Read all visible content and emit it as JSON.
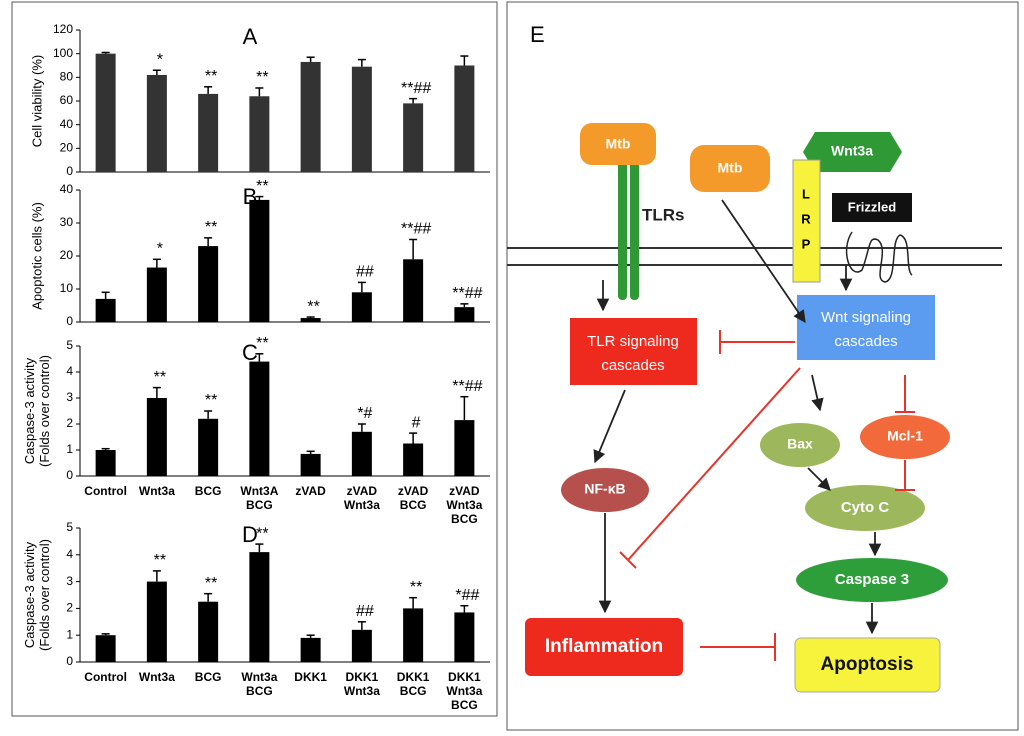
{
  "chart_data": [
    {
      "type": "bar",
      "panel": "A",
      "ylabel": [
        "Cell viability (%)"
      ],
      "categories": [
        null,
        null,
        null,
        null,
        null,
        null,
        null,
        null
      ],
      "values": [
        100,
        82,
        66,
        64,
        93,
        89,
        58,
        90
      ],
      "errors": [
        1,
        4,
        6,
        7,
        4,
        6,
        4,
        8
      ],
      "annotations": [
        null,
        "*",
        "**",
        "**",
        null,
        null,
        "**##",
        null
      ],
      "color": "#333333",
      "ylim": [
        0,
        120
      ],
      "yticks": [
        0,
        20,
        40,
        60,
        80,
        100,
        120
      ]
    },
    {
      "type": "bar",
      "panel": "B",
      "ylabel": [
        "Apoptotic cells (%)"
      ],
      "categories": [
        null,
        null,
        null,
        null,
        null,
        null,
        null,
        null
      ],
      "values": [
        7,
        16.5,
        23,
        37,
        1.2,
        9,
        19,
        4.5
      ],
      "errors": [
        2,
        2.5,
        2.5,
        1,
        0.3,
        3,
        6,
        1
      ],
      "annotations": [
        null,
        "*",
        "**",
        "**",
        "**",
        "##",
        "**##",
        "**##"
      ],
      "color": "#000000",
      "ylim": [
        0,
        40
      ],
      "yticks": [
        0,
        10,
        20,
        30,
        40
      ]
    },
    {
      "type": "bar",
      "panel": "C",
      "ylabel": [
        "Caspase-3 activity",
        "(Folds over control)"
      ],
      "categories": [
        [
          "Control"
        ],
        [
          "Wnt3a"
        ],
        [
          "BCG"
        ],
        [
          "Wnt3A",
          "BCG"
        ],
        [
          "zVAD"
        ],
        [
          "zVAD",
          "Wnt3a"
        ],
        [
          "zVAD",
          "BCG"
        ],
        [
          "zVAD",
          "Wnt3a",
          "BCG"
        ]
      ],
      "values": [
        1,
        3,
        2.2,
        4.4,
        0.85,
        1.7,
        1.25,
        2.15
      ],
      "errors": [
        0.05,
        0.4,
        0.3,
        0.3,
        0.1,
        0.3,
        0.4,
        0.9
      ],
      "annotations": [
        null,
        "**",
        "**",
        "**",
        null,
        "*#",
        "#",
        "**##"
      ],
      "color": "#000000",
      "ylim": [
        0,
        5
      ],
      "yticks": [
        0,
        1,
        2,
        3,
        4,
        5
      ]
    },
    {
      "type": "bar",
      "panel": "D",
      "ylabel": [
        "Caspase-3 activity",
        "(Folds over control)"
      ],
      "categories": [
        [
          "Control"
        ],
        [
          "Wnt3a"
        ],
        [
          "BCG"
        ],
        [
          "Wnt3a",
          "BCG"
        ],
        [
          "DKK1"
        ],
        [
          "DKK1",
          "Wnt3a"
        ],
        [
          "DKK1",
          "BCG"
        ],
        [
          "DKK1",
          "Wnt3a",
          "BCG"
        ]
      ],
      "values": [
        1,
        3,
        2.25,
        4.1,
        0.9,
        1.2,
        2,
        1.85
      ],
      "errors": [
        0.05,
        0.4,
        0.3,
        0.3,
        0.1,
        0.3,
        0.4,
        0.25
      ],
      "annotations": [
        null,
        "**",
        "**",
        "**",
        null,
        "##",
        "**",
        "*##"
      ],
      "color": "#000000",
      "ylim": [
        0,
        5
      ],
      "yticks": [
        0,
        1,
        2,
        3,
        4,
        5
      ]
    }
  ],
  "diagram": {
    "panel": "E",
    "nodes": [
      {
        "label": "Mtb"
      },
      {
        "label": "TLRs"
      },
      {
        "label": "Mtb"
      },
      {
        "label": "Wnt3a"
      },
      {
        "lines": [
          "L",
          "R",
          "P"
        ]
      },
      {
        "label": "Frizzled"
      },
      {
        "lines": [
          "TLR signaling",
          "cascades"
        ]
      },
      {
        "lines": [
          "Wnt signaling",
          "cascades"
        ]
      },
      {
        "label": "NF-κB"
      },
      {
        "label": "Bax"
      },
      {
        "label": "Mcl-1"
      },
      {
        "label": "Cyto C"
      },
      {
        "label": "Caspase 3"
      },
      {
        "label": "Inflammation"
      },
      {
        "label": "Apoptosis"
      }
    ]
  }
}
